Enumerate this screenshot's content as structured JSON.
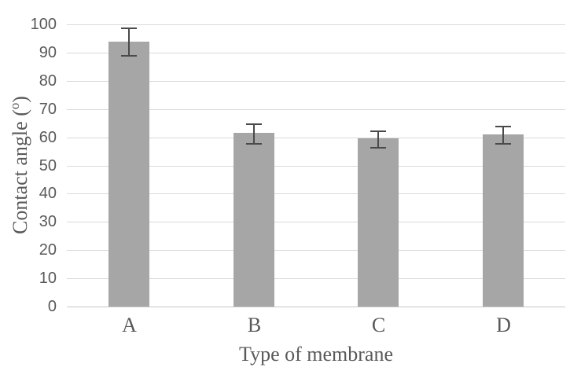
{
  "chart_data": {
    "type": "bar",
    "title": "",
    "categories": [
      "A",
      "B",
      "C",
      "D"
    ],
    "values": [
      94,
      61.5,
      59.5,
      61
    ],
    "errors": [
      5,
      3.5,
      3,
      3
    ],
    "xlabel": "Type of membrane",
    "ylabel": "Contact angle (o)",
    "ylabel_prefix": "Contact angle (",
    "ylabel_sup": "o",
    "ylabel_suffix": ")",
    "ylim": [
      0,
      100
    ],
    "yticks": [
      0,
      10,
      20,
      30,
      40,
      50,
      60,
      70,
      80,
      90,
      100
    ],
    "grid": true,
    "legend": "none",
    "colors": {
      "bar_fill": "#a6a6a6",
      "error_bar": "#4a4a4a",
      "gridline": "#dadada",
      "axis_line": "#c6c6c6",
      "tick_label": "#595959",
      "axis_title": "#595959",
      "background": "#ffffff"
    }
  }
}
